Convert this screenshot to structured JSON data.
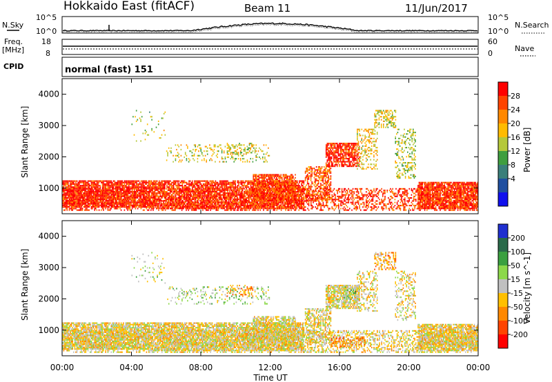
{
  "header": {
    "station": "Hokkaido East (fitACF)",
    "beam": "Beam 11",
    "date": "11/Jun/2017"
  },
  "strip_labels": {
    "nsky": "N.Sky",
    "nsearch": "N.Search",
    "freq": "Freq.",
    "freq_unit": "[MHz]",
    "nave": "Nave",
    "cpid": "CPID",
    "cpid_value": "normal (fast) 151"
  },
  "noise_ticks": {
    "left": [
      "10^5",
      "10^0"
    ],
    "right": [
      "10^5",
      "10^0"
    ]
  },
  "freq_ticks": {
    "left": [
      "18",
      "8"
    ],
    "right": [
      "60",
      "0"
    ]
  },
  "time_axis": {
    "label": "Time UT",
    "ticks": [
      "00:00",
      "04:00",
      "08:00",
      "12:00",
      "16:00",
      "20:00",
      "00:00"
    ]
  },
  "chart_data": [
    {
      "type": "heatmap",
      "panel": "power",
      "xlabel": "Time UT",
      "ylabel": "Slant Range [km]",
      "xlim": [
        0,
        24
      ],
      "ylim": [
        180,
        4500
      ],
      "yticks": [
        "1000",
        "2000",
        "3000",
        "4000"
      ],
      "colorbar": {
        "label": "Power [dB]",
        "ticks": [
          "28",
          "24",
          "20",
          "16",
          "12",
          "8",
          "4"
        ],
        "colors": [
          "#ff0000",
          "#ff4400",
          "#ff8800",
          "#ffbb00",
          "#b5c83a",
          "#3f9e3f",
          "#3a7f7a",
          "#1f4fa0",
          "#1010ee"
        ]
      },
      "regions": [
        {
          "t": [
            0,
            24
          ],
          "r": [
            250,
            1000
          ],
          "cat": 0.88,
          "density": 0.45,
          "note": "near-range band"
        },
        {
          "t": [
            0,
            5
          ],
          "r": [
            400,
            1250
          ],
          "cat": 0.9,
          "density": 0.85
        },
        {
          "t": [
            5,
            14
          ],
          "r": [
            350,
            1250
          ],
          "cat": 0.88,
          "density": 0.8
        },
        {
          "t": [
            11,
            13.5
          ],
          "r": [
            600,
            1450
          ],
          "cat": 0.85,
          "density": 0.75
        },
        {
          "t": [
            14,
            15.5
          ],
          "r": [
            600,
            1700
          ],
          "cat": 0.8,
          "density": 0.6
        },
        {
          "t": [
            15.2,
            17.2
          ],
          "r": [
            1650,
            2450
          ],
          "cat": 0.9,
          "density": 0.75
        },
        {
          "t": [
            17,
            18.2
          ],
          "r": [
            1600,
            2900
          ],
          "cat": 0.6,
          "density": 0.35
        },
        {
          "t": [
            18,
            19.3
          ],
          "r": [
            2900,
            3500
          ],
          "cat": 0.55,
          "density": 0.45
        },
        {
          "t": [
            19.2,
            20.4
          ],
          "r": [
            1300,
            2900
          ],
          "cat": 0.5,
          "density": 0.35
        },
        {
          "t": [
            20.5,
            24
          ],
          "r": [
            350,
            1200
          ],
          "cat": 0.88,
          "density": 0.85
        },
        {
          "t": [
            6,
            12
          ],
          "r": [
            1800,
            2400
          ],
          "cat": 0.55,
          "density": 0.2
        },
        {
          "t": [
            9.5,
            11
          ],
          "r": [
            2050,
            2450
          ],
          "cat": 0.55,
          "density": 0.3
        },
        {
          "t": [
            4,
            6
          ],
          "r": [
            2500,
            3500
          ],
          "cat": 0.5,
          "density": 0.08
        }
      ]
    },
    {
      "type": "heatmap",
      "panel": "velocity",
      "xlabel": "Time UT",
      "ylabel": "Slant Range [km]",
      "xlim": [
        0,
        24
      ],
      "ylim": [
        180,
        4500
      ],
      "yticks": [
        "1000",
        "2000",
        "3000",
        "4000"
      ],
      "colorbar": {
        "label": "Velocity [m s^-1]",
        "ticks": [
          "200",
          "100",
          "50",
          "15",
          "-15",
          "-50",
          "-100",
          "-200"
        ],
        "colors": [
          "#2030d0",
          "#2a6a4a",
          "#3aa040",
          "#8cd84a",
          "#c0c0c0",
          "#ffc000",
          "#ff8800",
          "#ff4400",
          "#ff0000"
        ]
      },
      "regions": [
        {
          "t": [
            0,
            24
          ],
          "r": [
            250,
            1000
          ],
          "cat": 0.45,
          "density": 0.45
        },
        {
          "t": [
            0,
            5
          ],
          "r": [
            400,
            1250
          ],
          "cat": 0.45,
          "density": 0.85
        },
        {
          "t": [
            5,
            14
          ],
          "r": [
            350,
            1250
          ],
          "cat": 0.45,
          "density": 0.8
        },
        {
          "t": [
            11,
            13.5
          ],
          "r": [
            600,
            1450
          ],
          "cat": 0.45,
          "density": 0.75
        },
        {
          "t": [
            14,
            15.5
          ],
          "r": [
            600,
            1700
          ],
          "cat": 0.45,
          "density": 0.6
        },
        {
          "t": [
            15.2,
            17.2
          ],
          "r": [
            1650,
            2450
          ],
          "cat": 0.45,
          "density": 0.75
        },
        {
          "t": [
            16.2,
            17
          ],
          "r": [
            1900,
            2400
          ],
          "cat": 0.62,
          "density": 0.35
        },
        {
          "t": [
            15.5,
            17.5
          ],
          "r": [
            450,
            800
          ],
          "cat": 0.3,
          "density": 0.4
        },
        {
          "t": [
            17,
            18.2
          ],
          "r": [
            1600,
            2900
          ],
          "cat": 0.45,
          "density": 0.35
        },
        {
          "t": [
            18,
            19.3
          ],
          "r": [
            2900,
            3500
          ],
          "cat": 0.35,
          "density": 0.45
        },
        {
          "t": [
            19.2,
            20.4
          ],
          "r": [
            1300,
            2900
          ],
          "cat": 0.45,
          "density": 0.35
        },
        {
          "t": [
            20.5,
            24
          ],
          "r": [
            350,
            1200
          ],
          "cat": 0.45,
          "density": 0.85
        },
        {
          "t": [
            6,
            12
          ],
          "r": [
            1800,
            2400
          ],
          "cat": 0.55,
          "density": 0.2
        },
        {
          "t": [
            9.5,
            11
          ],
          "r": [
            2050,
            2450
          ],
          "cat": 0.3,
          "density": 0.3
        },
        {
          "t": [
            4,
            6
          ],
          "r": [
            2500,
            3500
          ],
          "cat": 0.55,
          "density": 0.08
        }
      ]
    }
  ]
}
